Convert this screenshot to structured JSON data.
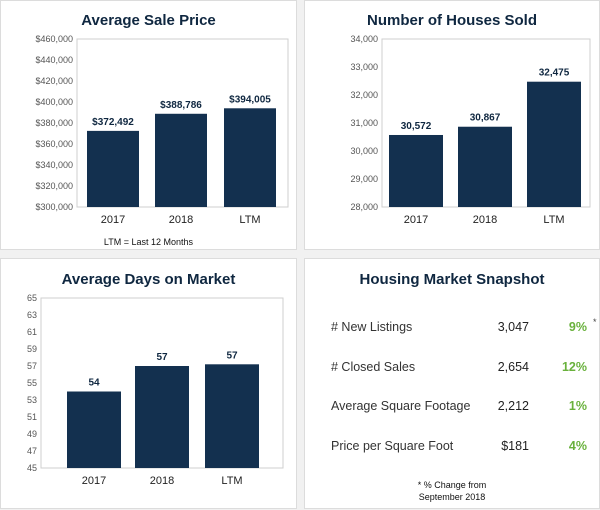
{
  "chart_data": [
    {
      "type": "bar",
      "title": "Average Sale Price",
      "categories": [
        "2017",
        "2018",
        "LTM"
      ],
      "values": [
        372492,
        388786,
        394005
      ],
      "value_labels": [
        "$372,492",
        "$388,786",
        "$394,005"
      ],
      "ylim": [
        300000,
        460000
      ],
      "yticks": [
        300000,
        320000,
        340000,
        360000,
        380000,
        400000,
        420000,
        440000,
        460000
      ],
      "ytick_labels": [
        "$300,000",
        "$320,000",
        "$340,000",
        "$360,000",
        "$380,000",
        "$400,000",
        "$420,000",
        "$440,000",
        "$460,000"
      ],
      "note": "LTM = Last 12 Months",
      "bar_color": "#13304f",
      "grid": false
    },
    {
      "type": "bar",
      "title": "Number of Houses Sold",
      "categories": [
        "2017",
        "2018",
        "LTM"
      ],
      "values": [
        30572,
        30867,
        32475
      ],
      "value_labels": [
        "30,572",
        "30,867",
        "32,475"
      ],
      "ylim": [
        28000,
        34000
      ],
      "yticks": [
        28000,
        29000,
        30000,
        31000,
        32000,
        33000,
        34000
      ],
      "ytick_labels": [
        "28,000",
        "29,000",
        "30,000",
        "31,000",
        "32,000",
        "33,000",
        "34,000"
      ],
      "bar_color": "#13304f",
      "grid": false
    },
    {
      "type": "bar",
      "title": "Average Days on Market",
      "categories": [
        "2017",
        "2018",
        "LTM"
      ],
      "values": [
        54,
        57,
        57.2
      ],
      "value_labels": [
        "54",
        "57",
        "57"
      ],
      "ylim": [
        45,
        65
      ],
      "yticks": [
        45,
        47,
        49,
        51,
        53,
        55,
        57,
        59,
        61,
        63,
        65
      ],
      "ytick_labels": [
        "45",
        "47",
        "49",
        "51",
        "53",
        "55",
        "57",
        "59",
        "61",
        "63",
        "65"
      ],
      "bar_color": "#13304f",
      "grid": false
    },
    {
      "type": "table",
      "title": "Housing Market Snapshot",
      "rows": [
        {
          "label": "# New Listings",
          "value": "3,047",
          "change": "9%"
        },
        {
          "label": "# Closed Sales",
          "value": "2,654",
          "change": "12%"
        },
        {
          "label": "Average Square Footage",
          "value": "2,212",
          "change": "1%"
        },
        {
          "label": "Price per Square Foot",
          "value": "$181",
          "change": "4%"
        }
      ],
      "asterisk": "*",
      "footnote_line1": "* % Change from",
      "footnote_line2": "September 2018",
      "change_color": "#69b13c"
    }
  ]
}
